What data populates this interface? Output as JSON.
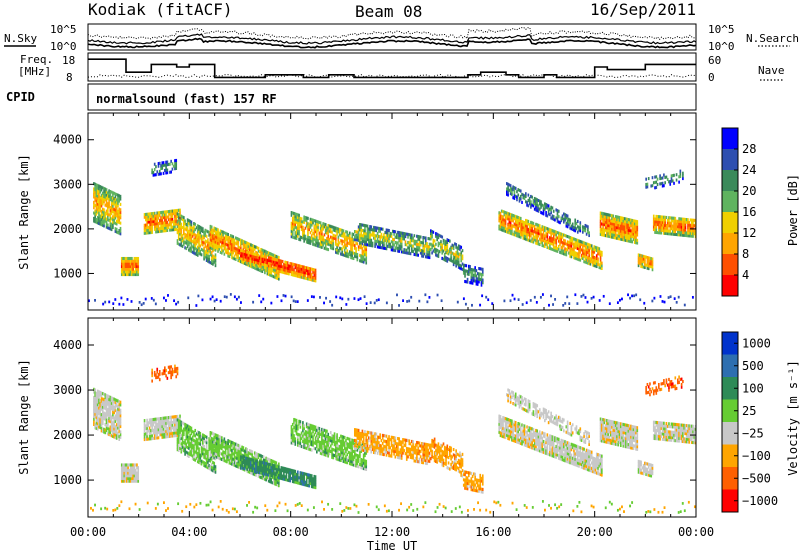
{
  "header": {
    "station": "Kodiak (fitACF)",
    "beam": "Beam 08",
    "date": "16/Sep/2011"
  },
  "panel_labels": {
    "nsky": "N.Sky",
    "nsearch": "N.Search",
    "freq_line1": "Freq.",
    "freq_line2": "[MHz]",
    "nave": "Nave",
    "cpid": "CPID",
    "cpid_value": "normalsound (fast) 157 RF",
    "noise_tick_hi": "10^5",
    "noise_tick_lo": "10^0",
    "freq_tick_hi": "18",
    "freq_tick_lo": "8",
    "nave_tick_hi": "60",
    "nave_tick_lo": "0"
  },
  "colors": {
    "power_scale": [
      "#0000ff",
      "#2e4fb0",
      "#3a8a5a",
      "#5fb35f",
      "#f0d000",
      "#ffa500",
      "#ff5000",
      "#ff0000"
    ],
    "velocity_scale": [
      "#0033cc",
      "#2e6fb0",
      "#2e8b57",
      "#66cc33",
      "#c8c8c8",
      "#ffa500",
      "#ff6000",
      "#ff0000"
    ]
  },
  "chart_data": [
    {
      "type": "line",
      "name": "noise",
      "series": [
        {
          "name": "N.Sky",
          "style": "solid"
        },
        {
          "name": "N.Search",
          "style": "dotted"
        }
      ],
      "ylabels": [
        "10^5",
        "10^0"
      ]
    },
    {
      "type": "line",
      "name": "frequency-nave",
      "series": [
        {
          "name": "Freq.",
          "style": "solid",
          "values_mhz": [
            16,
            16,
            16,
            11,
            11,
            14,
            14,
            13,
            14,
            14,
            9,
            9,
            9,
            9,
            10,
            10,
            10,
            9,
            9,
            10,
            10,
            9,
            9,
            9,
            9,
            9,
            9,
            9,
            9,
            9,
            10,
            11,
            11,
            10,
            9,
            9,
            10,
            9,
            9,
            9,
            13,
            12,
            12,
            12,
            14,
            14,
            14,
            14
          ]
        },
        {
          "name": "Nave",
          "style": "dotted"
        }
      ],
      "ylim_left": [
        8,
        18
      ],
      "ylim_right": [
        0,
        60
      ]
    },
    {
      "type": "heatmap",
      "name": "power",
      "ylabel": "Slant Range [km]",
      "yticks": [
        "4000",
        "3000",
        "2000",
        "1000"
      ],
      "ylim": [
        180,
        4600
      ],
      "colorbar_label": "Power [dB]",
      "colorbar_ticks": [
        "28",
        "24",
        "20",
        "16",
        "12",
        "8",
        "4"
      ]
    },
    {
      "type": "heatmap",
      "name": "velocity",
      "ylabel": "Slant Range [km]",
      "yticks": [
        "4000",
        "3000",
        "2000",
        "1000"
      ],
      "ylim": [
        180,
        4600
      ],
      "colorbar_label": "Velocity [m s⁻¹]",
      "colorbar_ticks": [
        "1000",
        "500",
        "100",
        "25",
        "−25",
        "−100",
        "−500",
        "−1000"
      ]
    }
  ],
  "x_axis": {
    "label": "Time UT",
    "ticks": [
      "00:00",
      "04:00",
      "08:00",
      "12:00",
      "16:00",
      "20:00",
      "00:00"
    ]
  }
}
